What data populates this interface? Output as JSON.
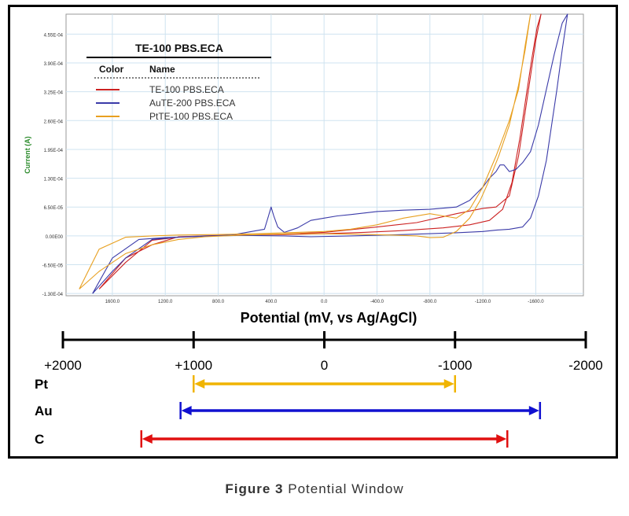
{
  "chart_data": [
    {
      "type": "line",
      "title": "TE-100 PBS.ECA",
      "xlabel": "Potential (mV, vs Ag/AgCl)",
      "ylabel": "Current (A)",
      "x_reversed": true,
      "xlim": [
        1950,
        -1960
      ],
      "ylim": [
        -0.000135,
        0.0005
      ],
      "x_ticks": [
        1600,
        1200,
        800,
        400,
        0,
        -400,
        -800,
        -1200,
        -1600
      ],
      "x_tick_labels": [
        "1600.0",
        "1200.0",
        "800.0",
        "400.0",
        "0.0",
        "-400.0",
        "-800.0",
        "-1200.0",
        "-1600.0"
      ],
      "y_ticks": [
        -0.00013,
        -6.5e-05,
        0,
        6.5e-05,
        0.00013,
        0.000195,
        0.00026,
        0.000325,
        0.00039,
        0.000455
      ],
      "y_tick_labels": [
        "-1.30E-04",
        "-6.50E-05",
        "0.00E00",
        "6.50E-05",
        "1.30E-04",
        "1.95E-04",
        "2.60E-04",
        "3.25E-04",
        "3.90E-04",
        "4.55E-04"
      ],
      "grid": true,
      "legend": {
        "title": "TE-100 PBS.ECA",
        "header_color": "Color",
        "header_name": "Name",
        "placement": "top-left"
      },
      "series": [
        {
          "name": "TE-100 PBS.ECA",
          "color": "#cc2222",
          "x": [
            1700,
            1500,
            1300,
            1100,
            900,
            600,
            300,
            0,
            -300,
            -600,
            -900,
            -1100,
            -1250,
            -1350,
            -1420,
            -1480,
            -1530,
            -1570,
            -1610,
            -1640,
            -1640,
            -1600,
            -1560,
            -1520,
            -1470,
            -1400,
            -1300,
            -1200,
            -1000,
            -700,
            -400,
            0,
            400,
            800,
            1100,
            1300,
            1500,
            1700
          ],
          "y": [
            -0.00012,
            -6e-05,
            -1e-05,
            -3e-06,
            0,
            2e-06,
            3e-06,
            5e-06,
            8e-06,
            1.2e-05,
            1.8e-05,
            2.5e-05,
            3.5e-05,
            6e-05,
            0.00012,
            0.00022,
            0.00032,
            0.0004,
            0.00047,
            0.0005,
            0.0005,
            0.00044,
            0.00036,
            0.00028,
            0.00018,
            9e-05,
            6.5e-05,
            6.2e-05,
            5e-05,
            3e-05,
            2e-05,
            8e-06,
            3e-06,
            1e-06,
            -2e-06,
            -2e-05,
            -5e-05,
            -0.00012
          ]
        },
        {
          "name": "AuTE-200 PBS.ECA",
          "color": "#3a3aa8",
          "x": [
            1750,
            1600,
            1400,
            1200,
            1000,
            700,
            450,
            420,
            400,
            380,
            350,
            300,
            200,
            100,
            0,
            -100,
            -200,
            -400,
            -600,
            -800,
            -1000,
            -1100,
            -1200,
            -1250,
            -1300,
            -1330,
            -1360,
            -1400,
            -1450,
            -1500,
            -1560,
            -1620,
            -1680,
            -1740,
            -1800,
            -1840,
            -1840,
            -1800,
            -1760,
            -1720,
            -1680,
            -1620,
            -1560,
            -1500,
            -1400,
            -1300,
            -1200,
            -1000,
            -600,
            -200,
            100,
            300,
            600,
            900,
            1100,
            1300,
            1500,
            1600,
            1750
          ],
          "y": [
            -0.00013,
            -5e-05,
            -8e-06,
            -4e-06,
            -2e-06,
            2e-06,
            1.5e-05,
            4.5e-05,
            6.5e-05,
            4.5e-05,
            2e-05,
            8e-06,
            1.8e-05,
            3.5e-05,
            4e-05,
            4.5e-05,
            4.8e-05,
            5.5e-05,
            5.8e-05,
            6e-05,
            6.5e-05,
            8e-05,
            0.00011,
            0.00013,
            0.000145,
            0.00016,
            0.00016,
            0.000145,
            0.00015,
            0.000165,
            0.00019,
            0.00025,
            0.00033,
            0.00041,
            0.00048,
            0.0005,
            0.0005,
            0.00042,
            0.00033,
            0.00025,
            0.00017,
            9e-05,
            4e-05,
            2e-05,
            1.5e-05,
            1.3e-05,
            1e-05,
            7e-06,
            3e-06,
            0,
            -2e-06,
            0,
            1e-06,
            0,
            -3e-06,
            -8e-06,
            -5e-05,
            -8e-05,
            -0.00013
          ]
        },
        {
          "name": "PtTE-100 PBS.ECA",
          "color": "#e8a020",
          "x": [
            1850,
            1700,
            1500,
            1300,
            1100,
            800,
            500,
            200,
            0,
            -200,
            -400,
            -600,
            -800,
            -900,
            -1000,
            -1100,
            -1200,
            -1300,
            -1400,
            -1470,
            -1520,
            -1560,
            -1560,
            -1520,
            -1470,
            -1400,
            -1320,
            -1240,
            -1180,
            -1100,
            -1000,
            -900,
            -800,
            -700,
            -500,
            -200,
            200,
            600,
            900,
            1100,
            1300,
            1500,
            1700,
            1850
          ],
          "y": [
            -0.00012,
            -3e-05,
            -3e-06,
            0,
            2e-06,
            3e-06,
            5e-06,
            8e-06,
            1e-05,
            1.5e-05,
            2.5e-05,
            4e-05,
            5e-05,
            4.5e-05,
            4e-05,
            6e-05,
            0.00011,
            0.00018,
            0.00026,
            0.00033,
            0.00043,
            0.0005,
            0.0005,
            0.00042,
            0.00034,
            0.00025,
            0.00018,
            0.00012,
            8e-05,
            4e-05,
            1e-05,
            -3e-06,
            -4e-06,
            0,
            2e-06,
            4e-06,
            5e-06,
            2e-06,
            -2e-06,
            -8e-06,
            -2e-05,
            -4e-05,
            -8e-05,
            -0.00012
          ]
        }
      ]
    },
    {
      "type": "range",
      "xlim": [
        2000,
        -2000
      ],
      "ticks": [
        2000,
        1000,
        0,
        -1000,
        -2000
      ],
      "tick_labels": [
        "+2000",
        "+1000",
        "0",
        "-1000",
        "-2000"
      ],
      "ranges": [
        {
          "label": "Pt",
          "start": 1000,
          "end": -1000,
          "color": "#f0b400"
        },
        {
          "label": "Au",
          "start": 1100,
          "end": -1650,
          "color": "#1010d0"
        },
        {
          "label": "C",
          "start": 1400,
          "end": -1400,
          "color": "#e01010"
        }
      ]
    }
  ],
  "caption": {
    "label": "Figure 3",
    "text": "Potential Window"
  }
}
